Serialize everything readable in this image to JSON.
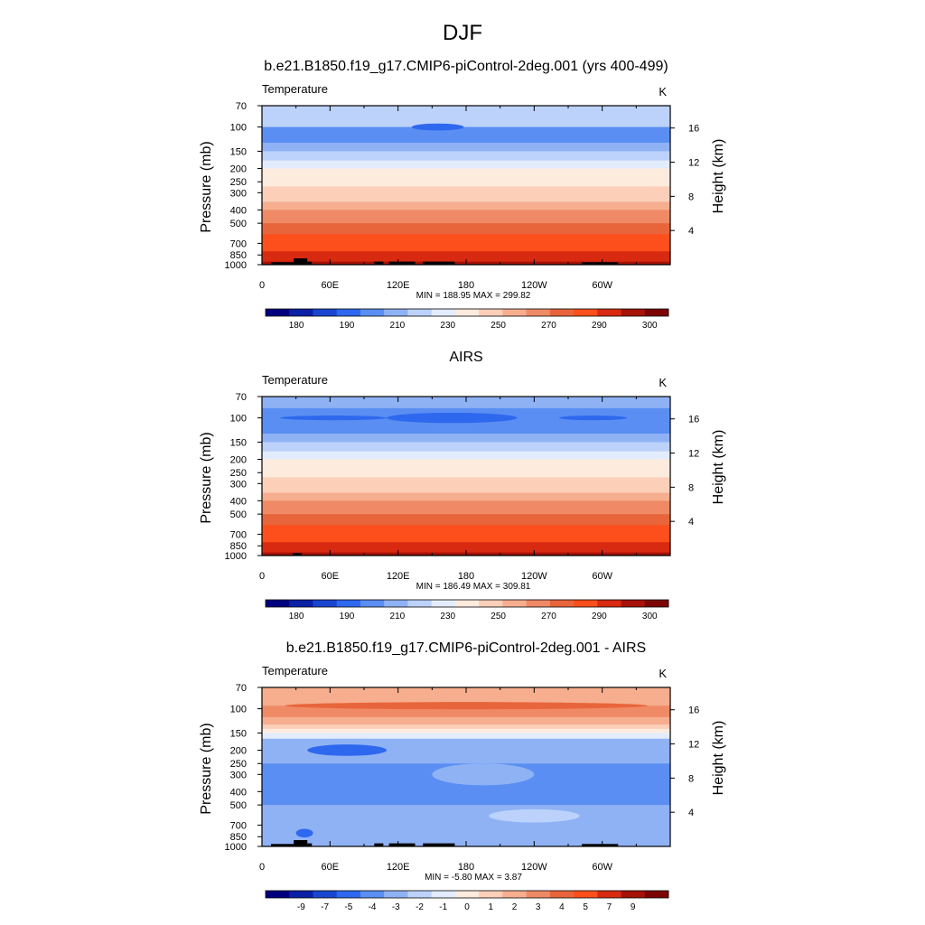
{
  "page_title": "DJF",
  "colors": {
    "abs_colorbar": [
      "#00007f",
      "#0a21a5",
      "#1a45d0",
      "#2e68ee",
      "#5a8ef2",
      "#8fb2f5",
      "#bcd2fa",
      "#e3ecfc",
      "#fdebde",
      "#fbcfb8",
      "#f6ae8e",
      "#f08a66",
      "#e8653c",
      "#fc4f1c",
      "#d82a10",
      "#a61208",
      "#7d0303"
    ],
    "diff_colorbar": [
      "#00007f",
      "#0a21a5",
      "#1a45d0",
      "#2e68ee",
      "#5a8ef2",
      "#8fb2f5",
      "#bcd2fa",
      "#e3ecfc",
      "#fdebde",
      "#fbcfb8",
      "#f6ae8e",
      "#f08a66",
      "#e8653c",
      "#fc4f1c",
      "#d82a10",
      "#a61208",
      "#7d0303"
    ],
    "topography": "#000000"
  },
  "chart_data": [
    {
      "type": "heatmap",
      "title": "b.e21.B1850.f19_g17.CMIP6-piControl-2deg.001 (yrs 400-499)",
      "left_string": "Temperature",
      "right_string": "K",
      "ylabel": "Pressure (mb)",
      "ylabel_right": "Height (km)",
      "x_ticks": [
        "0",
        "60E",
        "120E",
        "180",
        "120W",
        "60W"
      ],
      "x_tick_lons": [
        0,
        60,
        120,
        180,
        240,
        300
      ],
      "xlim": [
        0,
        360
      ],
      "pressure_ticks": [
        "70",
        "100",
        "150",
        "200",
        "250",
        "300",
        "400",
        "500",
        "700",
        "850",
        "1000"
      ],
      "pressure_values": [
        70,
        100,
        150,
        200,
        250,
        300,
        400,
        500,
        700,
        850,
        1000
      ],
      "height_ticks": [
        "4",
        "8",
        "12",
        "16"
      ],
      "height_values_km": [
        4,
        8,
        12,
        16
      ],
      "ylim_mb": [
        70,
        1000
      ],
      "stats": "MIN = 188.95  MAX = 299.82",
      "min": 188.95,
      "max": 299.82,
      "levels": [
        "180",
        "190",
        "210",
        "230",
        "250",
        "270",
        "290",
        "300"
      ],
      "profile": [
        [
          70,
          6
        ],
        [
          85,
          6
        ],
        [
          100,
          4
        ],
        [
          130,
          5
        ],
        [
          150,
          6
        ],
        [
          175,
          7
        ],
        [
          200,
          8
        ],
        [
          240,
          8
        ],
        [
          270,
          9
        ],
        [
          300,
          9
        ],
        [
          350,
          10
        ],
        [
          400,
          11
        ],
        [
          450,
          11
        ],
        [
          500,
          12
        ],
        [
          600,
          13
        ],
        [
          700,
          13
        ],
        [
          800,
          14
        ],
        [
          900,
          14
        ],
        [
          950,
          15
        ],
        [
          985,
          16
        ]
      ],
      "features": [
        {
          "lon": [
            132,
            178
          ],
          "p_center": 100,
          "p_halfwidth": 6,
          "band": 3
        }
      ],
      "topography": [
        {
          "lon": [
            8,
            28
          ],
          "top_mb": 960
        },
        {
          "lon": [
            28,
            40
          ],
          "top_mb": 900
        },
        {
          "lon": [
            40,
            44
          ],
          "top_mb": 950
        },
        {
          "lon": [
            99,
            107
          ],
          "top_mb": 950
        },
        {
          "lon": [
            112,
            135
          ],
          "top_mb": 950
        },
        {
          "lon": [
            142,
            170
          ],
          "top_mb": 950
        },
        {
          "lon": [
            282,
            314
          ],
          "top_mb": 960
        }
      ]
    },
    {
      "type": "heatmap",
      "title": "AIRS",
      "left_string": "Temperature",
      "right_string": "K",
      "ylabel": "Pressure (mb)",
      "ylabel_right": "Height (km)",
      "x_ticks": [
        "0",
        "60E",
        "120E",
        "180",
        "120W",
        "60W"
      ],
      "x_tick_lons": [
        0,
        60,
        120,
        180,
        240,
        300
      ],
      "xlim": [
        0,
        360
      ],
      "pressure_ticks": [
        "70",
        "100",
        "150",
        "200",
        "250",
        "300",
        "400",
        "500",
        "700",
        "850",
        "1000"
      ],
      "pressure_values": [
        70,
        100,
        150,
        200,
        250,
        300,
        400,
        500,
        700,
        850,
        1000
      ],
      "height_ticks": [
        "4",
        "8",
        "12",
        "16"
      ],
      "height_values_km": [
        4,
        8,
        12,
        16
      ],
      "ylim_mb": [
        70,
        1000
      ],
      "stats": "MIN = 186.49  MAX = 309.81",
      "min": 186.49,
      "max": 309.81,
      "levels": [
        "180",
        "190",
        "210",
        "230",
        "250",
        "270",
        "290",
        "300"
      ],
      "profile": [
        [
          70,
          5
        ],
        [
          85,
          4
        ],
        [
          100,
          4
        ],
        [
          130,
          5
        ],
        [
          150,
          6
        ],
        [
          175,
          7
        ],
        [
          200,
          8
        ],
        [
          240,
          8
        ],
        [
          270,
          9
        ],
        [
          300,
          9
        ],
        [
          350,
          10
        ],
        [
          400,
          11
        ],
        [
          450,
          11
        ],
        [
          500,
          12
        ],
        [
          600,
          13
        ],
        [
          700,
          13
        ],
        [
          800,
          14
        ],
        [
          900,
          14
        ],
        [
          950,
          15
        ],
        [
          985,
          16
        ]
      ],
      "features": [
        {
          "lon": [
            16,
            110
          ],
          "p_center": 100,
          "p_halfwidth": 4,
          "band": 3
        },
        {
          "lon": [
            110,
            225
          ],
          "p_center": 100,
          "p_halfwidth": 9,
          "band": 3
        },
        {
          "lon": [
            262,
            322
          ],
          "p_center": 100,
          "p_halfwidth": 4,
          "band": 3
        }
      ],
      "topography": [
        {
          "lon": [
            27,
            35
          ],
          "top_mb": 960
        }
      ]
    },
    {
      "type": "heatmap",
      "title": "b.e21.B1850.f19_g17.CMIP6-piControl-2deg.001 - AIRS",
      "left_string": "Temperature",
      "right_string": "K",
      "ylabel": "Pressure (mb)",
      "ylabel_right": "Height (km)",
      "x_ticks": [
        "0",
        "60E",
        "120E",
        "180",
        "120W",
        "60W"
      ],
      "x_tick_lons": [
        0,
        60,
        120,
        180,
        240,
        300
      ],
      "xlim": [
        0,
        360
      ],
      "pressure_ticks": [
        "70",
        "100",
        "150",
        "200",
        "250",
        "300",
        "400",
        "500",
        "700",
        "850",
        "1000"
      ],
      "pressure_values": [
        70,
        100,
        150,
        200,
        250,
        300,
        400,
        500,
        700,
        850,
        1000
      ],
      "height_ticks": [
        "4",
        "8",
        "12",
        "16"
      ],
      "height_values_km": [
        4,
        8,
        12,
        16
      ],
      "ylim_mb": [
        70,
        1000
      ],
      "stats": "MIN =  -5.80  MAX =   3.87",
      "min": -5.8,
      "max": 3.87,
      "levels": [
        "-9",
        "-7",
        "-5",
        "-4",
        "-3",
        "-2",
        "-1",
        "0",
        "1",
        "2",
        "3",
        "4",
        "5",
        "7",
        "9"
      ],
      "profile": [
        [
          70,
          10
        ],
        [
          95,
          11
        ],
        [
          115,
          10
        ],
        [
          130,
          9
        ],
        [
          140,
          8
        ],
        [
          150,
          7
        ],
        [
          165,
          5
        ],
        [
          250,
          4
        ],
        [
          350,
          4
        ],
        [
          500,
          5
        ],
        [
          650,
          5
        ],
        [
          850,
          5
        ],
        [
          985,
          5
        ]
      ],
      "features": [
        {
          "lon": [
            20,
            340
          ],
          "p_center": 95,
          "p_halfwidth": 6,
          "band": 12
        },
        {
          "lon": [
            150,
            240
          ],
          "p_center": 300,
          "p_halfwidth": 60,
          "band": 5
        },
        {
          "lon": [
            200,
            280
          ],
          "p_center": 600,
          "p_halfwidth": 70,
          "band": 6
        },
        {
          "lon": [
            40,
            110
          ],
          "p_center": 200,
          "p_halfwidth": 20,
          "band": 3
        },
        {
          "lon": [
            30,
            45
          ],
          "p_center": 800,
          "p_halfwidth": 60,
          "band": 3
        }
      ],
      "topography": [
        {
          "lon": [
            8,
            28
          ],
          "top_mb": 960
        },
        {
          "lon": [
            28,
            40
          ],
          "top_mb": 900
        },
        {
          "lon": [
            40,
            44
          ],
          "top_mb": 950
        },
        {
          "lon": [
            99,
            107
          ],
          "top_mb": 950
        },
        {
          "lon": [
            112,
            135
          ],
          "top_mb": 950
        },
        {
          "lon": [
            142,
            170
          ],
          "top_mb": 950
        },
        {
          "lon": [
            282,
            314
          ],
          "top_mb": 960
        }
      ]
    }
  ]
}
